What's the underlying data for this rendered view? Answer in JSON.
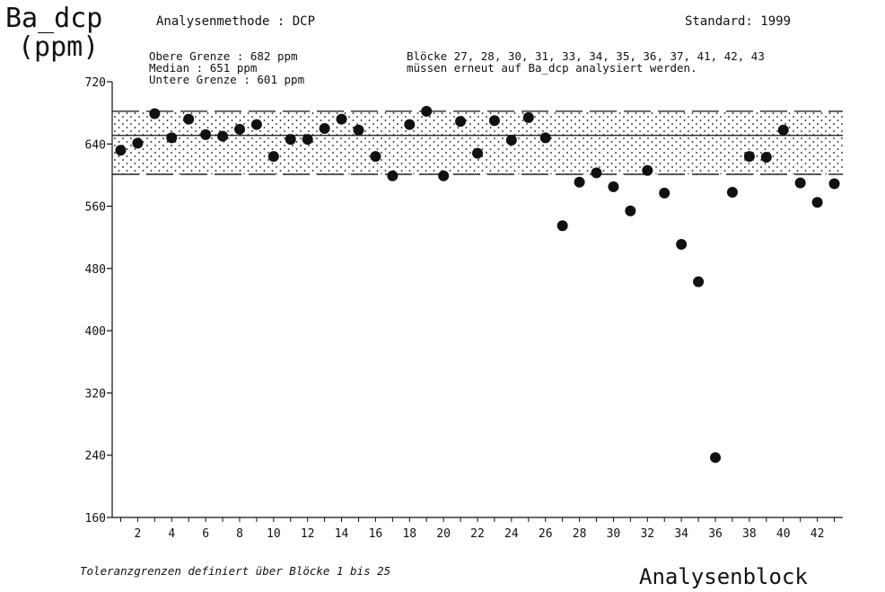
{
  "header": {
    "method_label": "Analysenmethode : DCP",
    "standard_label": "Standard:  1999",
    "upper_limit": "Obere Grenze   :  682 ppm",
    "median": "Median         :  651 ppm",
    "lower_limit": "Untere Grenze  :  601 ppm",
    "blocks_line1": "Blöcke  27, 28, 30, 31, 33, 34, 35, 36, 37, 41, 42, 43",
    "blocks_line2": "müssen erneut auf Ba_dcp analysiert werden."
  },
  "footer": {
    "tolerance_note": "Toleranzgrenzen definiert über Blöcke  1 bis 25"
  },
  "colors": {
    "ink": "#111111",
    "background": "#ffffff"
  },
  "chart_data": {
    "type": "scatter",
    "ylabel_line1": "Ba_dcp",
    "ylabel_line2": "(ppm)",
    "xlabel": "Analysenblock",
    "xlim": [
      0,
      43
    ],
    "ylim": [
      160,
      720
    ],
    "yticks": [
      160,
      240,
      320,
      400,
      480,
      560,
      640,
      720
    ],
    "xticks": [
      2,
      4,
      6,
      8,
      10,
      12,
      14,
      16,
      18,
      20,
      22,
      24,
      26,
      28,
      30,
      32,
      34,
      36,
      38,
      40,
      42
    ],
    "reference_lines": {
      "upper": 682,
      "median": 651,
      "lower": 601
    },
    "tolerance_band": "dotted fill between lower and upper limit",
    "x": [
      1,
      2,
      3,
      4,
      5,
      6,
      7,
      8,
      9,
      10,
      11,
      12,
      13,
      14,
      15,
      16,
      17,
      18,
      19,
      20,
      21,
      22,
      23,
      24,
      25,
      26,
      27,
      28,
      29,
      30,
      31,
      32,
      33,
      34,
      35,
      36,
      37,
      38,
      39,
      40,
      41,
      42,
      43
    ],
    "y": [
      632,
      641,
      679,
      648,
      672,
      652,
      650,
      659,
      665,
      624,
      646,
      646,
      660,
      672,
      658,
      624,
      599,
      665,
      682,
      599,
      669,
      628,
      670,
      645,
      674,
      648,
      535,
      591,
      603,
      585,
      554,
      606,
      577,
      511,
      463,
      237,
      578,
      624,
      623,
      658,
      590,
      565,
      589
    ]
  }
}
